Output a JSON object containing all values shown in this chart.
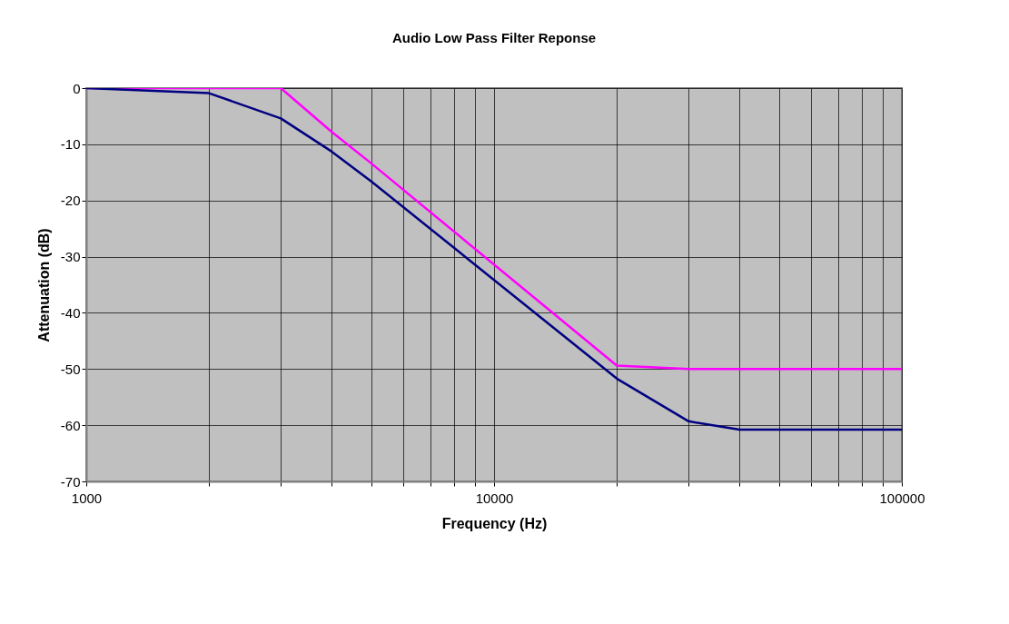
{
  "chart_data": {
    "type": "line",
    "title": "Audio Low Pass Filter Reponse",
    "xlabel": "Frequency (Hz)",
    "ylabel": "Attenuation (dB)",
    "log": "x",
    "xlim": [
      1000,
      100000
    ],
    "ylim": [
      -70,
      0
    ],
    "xticks": [
      1000,
      {
        "value": 2000,
        "label": null
      },
      {
        "value": 3000,
        "label": null
      },
      {
        "value": 4000,
        "label": null
      },
      {
        "value": 5000,
        "label": null
      },
      {
        "value": 6000,
        "label": null
      },
      {
        "value": 7000,
        "label": null
      },
      {
        "value": 8000,
        "label": null
      },
      {
        "value": 9000,
        "label": null
      },
      10000,
      {
        "value": 20000,
        "label": null
      },
      {
        "value": 30000,
        "label": null
      },
      {
        "value": 40000,
        "label": null
      },
      {
        "value": 50000,
        "label": null
      },
      {
        "value": 60000,
        "label": null
      },
      {
        "value": 70000,
        "label": null
      },
      {
        "value": 80000,
        "label": null
      },
      {
        "value": 90000,
        "label": null
      },
      100000
    ],
    "yticks": [
      -70,
      -60,
      -50,
      -40,
      -30,
      -20,
      -10,
      0
    ],
    "grid": true,
    "marker": "none",
    "line_style": "solid",
    "series": [
      {
        "color": "#ff00ff",
        "x": [
          1000,
          2000,
          3000,
          4000,
          5000,
          20000,
          30000,
          40000,
          100000
        ],
        "values": [
          0,
          0,
          0,
          -7.8,
          -13.4,
          -49.4,
          -50,
          -50,
          -50
        ]
      },
      {
        "color": "#000080",
        "x": [
          1000,
          2000,
          3000,
          4000,
          5000,
          20000,
          30000,
          40000,
          100000
        ],
        "values": [
          0,
          -0.9,
          -5.4,
          -11.3,
          -16.6,
          -51.7,
          -59.3,
          -60.8,
          -60.8
        ]
      }
    ]
  }
}
